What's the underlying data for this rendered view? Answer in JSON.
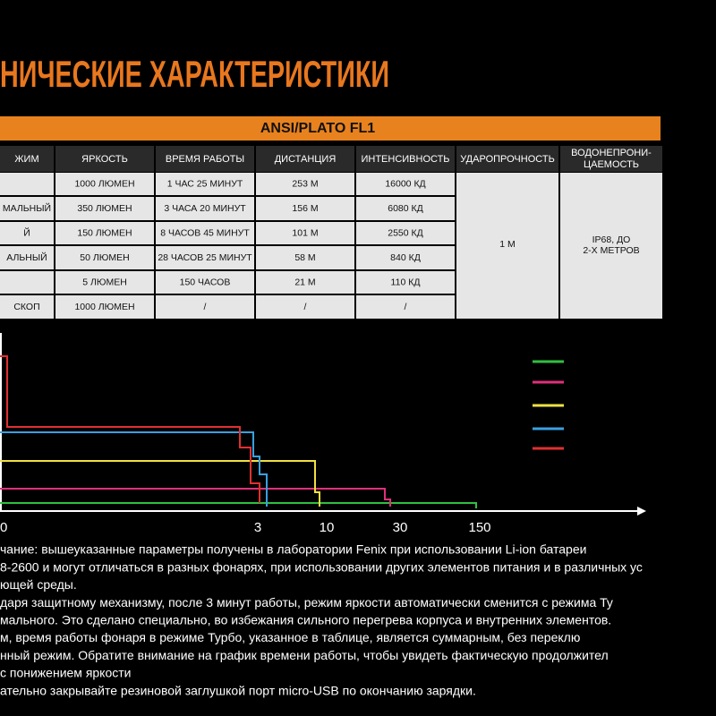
{
  "header": {
    "title": "НИЧЕСКИЕ ХАРАКТЕРИСТИКИ"
  },
  "table": {
    "caption": "ANSI/PLATO FL1",
    "columns": [
      "ЖИМ",
      "ЯРКОСТЬ",
      "ВРЕМЯ РАБОТЫ",
      "ДИСТАНЦИЯ",
      "ИНТЕНСИВНОСТЬ",
      "УДАРОПРОЧНОСТЬ",
      [
        "ВОДОНЕПРОНИ-",
        "ЦАЕМОСТЬ"
      ]
    ],
    "rows": [
      [
        null,
        "1000 ЛЮМЕН",
        "1 ЧАС 25 МИНУТ",
        "253 М",
        "16000 КД"
      ],
      [
        "МАЛЬНЫЙ",
        "350 ЛЮМЕН",
        "3 ЧАСА 20 МИНУТ",
        "156 М",
        "6080 КД"
      ],
      [
        "Й",
        "150 ЛЮМЕН",
        "8 ЧАСОВ 45 МИНУТ",
        "101 М",
        "2550 КД"
      ],
      [
        "АЛЬНЫЙ",
        "50 ЛЮМЕН",
        "28 ЧАСОВ 25 МИНУТ",
        "58 М",
        "840 КД"
      ],
      [
        null,
        "5 ЛЮМЕН",
        "150 ЧАСОВ",
        "21 М",
        "110 КД"
      ],
      [
        "СКОП",
        "1000 ЛЮМЕН",
        "/",
        "/",
        "/"
      ]
    ],
    "impact": "1 М",
    "waterproof": [
      "IP68, ДО",
      "2-Х МЕТРОВ"
    ]
  },
  "chart": {
    "xticks": [
      "0",
      "3",
      "10",
      "30",
      "150"
    ]
  },
  "notes": [
    "чание: вышеуказанные параметры получены в лаборатории Fenix при использовании Li-ion батареи",
    "8-2600 и могут отличаться в разных фонарях, при использовании других элементов питания и в различных ус",
    "ющей среды.",
    "даря защитному механизму, после 3 минут работы, режим яркости автоматически сменится с режима Ту",
    "мального. Это сделано специально, во избежания сильного перегрева корпуса и внутренних элементов.",
    "м, время работы фонаря в режиме Турбо, указанное в таблице, является суммарным, без переклю",
    "нный режим. Обратите внимание на график времени работы, чтобы увидеть фактическую продолжител",
    " с понижением яркости",
    "ательно закрывайте резиновой заглушкой порт micro-USB по окончанию зарядки."
  ]
}
